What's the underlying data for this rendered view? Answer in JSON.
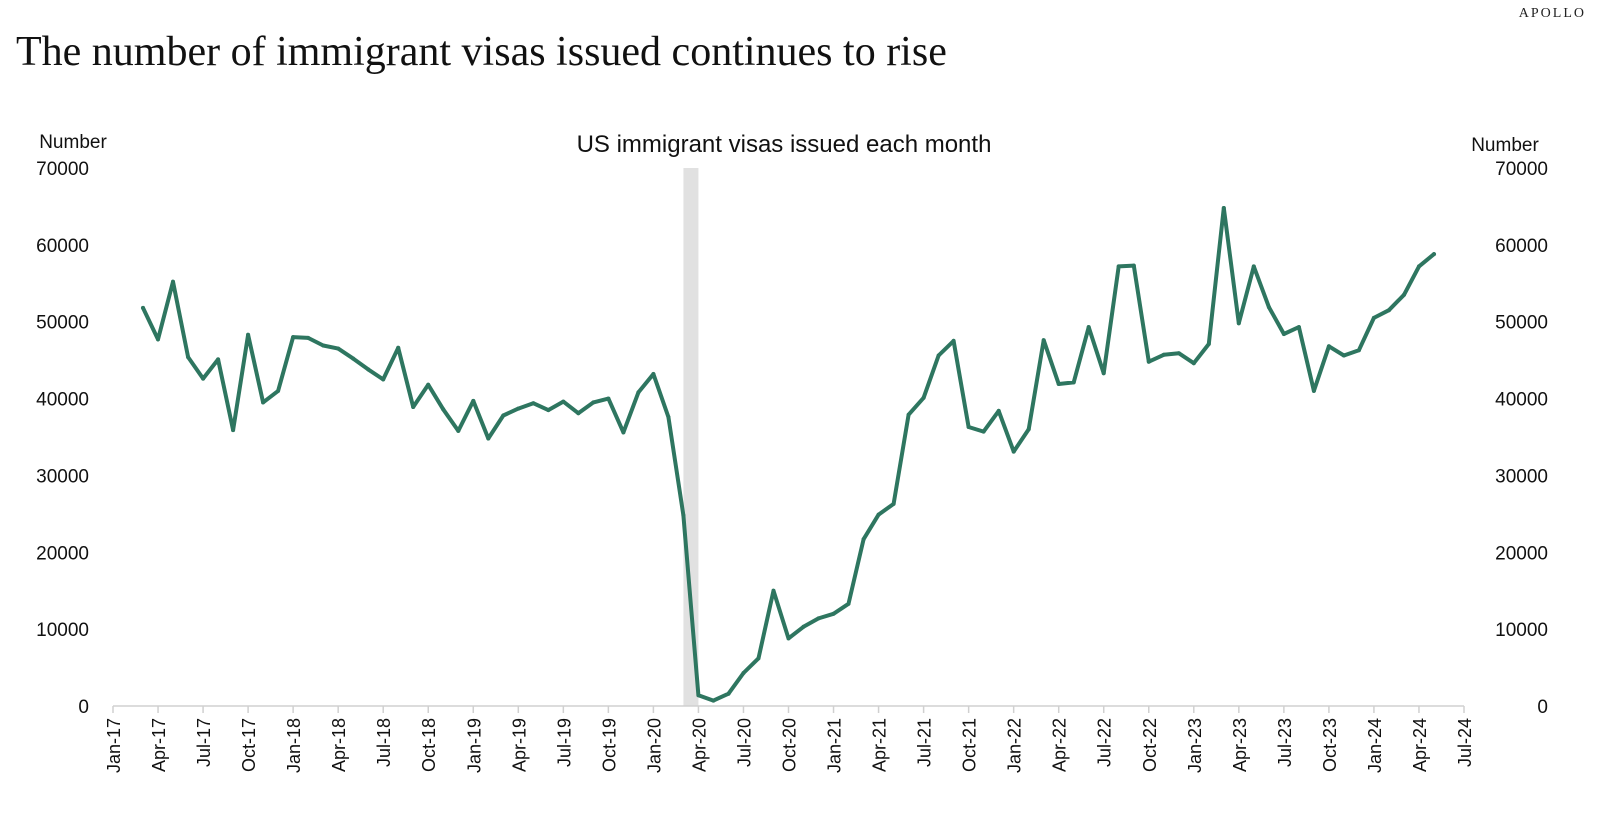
{
  "header": {
    "brand": "APOLLO",
    "headline": "The number of immigrant visas issued continues to rise"
  },
  "chart_data": {
    "type": "line",
    "title": "US immigrant visas issued each month",
    "left_axis_label": "Number",
    "right_axis_label": "Number",
    "ylim": [
      0,
      70000
    ],
    "y_ticks": [
      0,
      10000,
      20000,
      30000,
      40000,
      50000,
      60000,
      70000
    ],
    "x_range": [
      "2017-01",
      "2024-07"
    ],
    "x_ticks": [
      "Jan-17",
      "Apr-17",
      "Jul-17",
      "Oct-17",
      "Jan-18",
      "Apr-18",
      "Jul-18",
      "Oct-18",
      "Jan-19",
      "Apr-19",
      "Jul-19",
      "Oct-19",
      "Jan-20",
      "Apr-20",
      "Jul-20",
      "Oct-20",
      "Jan-21",
      "Apr-21",
      "Jul-21",
      "Oct-21",
      "Jan-22",
      "Apr-22",
      "Jul-22",
      "Oct-22",
      "Jan-23",
      "Apr-23",
      "Jul-23",
      "Oct-23",
      "Jan-24",
      "Apr-24",
      "Jul-24"
    ],
    "shaded_period": [
      "2020-03",
      "2020-04"
    ],
    "grid": false,
    "colors": {
      "line": "#2e7660",
      "shade": "#e1e1e1",
      "axis": "#d0d0d0"
    },
    "series": [
      {
        "x": [
          "2017-03",
          "2017-04",
          "2017-05",
          "2017-06",
          "2017-07",
          "2017-08",
          "2017-09",
          "2017-10",
          "2017-11",
          "2017-12",
          "2018-01",
          "2018-02",
          "2018-03",
          "2018-04",
          "2018-05",
          "2018-06",
          "2018-07",
          "2018-08",
          "2018-09",
          "2018-10",
          "2018-11",
          "2018-12",
          "2019-01",
          "2019-02",
          "2019-03",
          "2019-04",
          "2019-05",
          "2019-06",
          "2019-07",
          "2019-08",
          "2019-09",
          "2019-10",
          "2019-11",
          "2019-12",
          "2020-01",
          "2020-02",
          "2020-03",
          "2020-04",
          "2020-05",
          "2020-06",
          "2020-07",
          "2020-08",
          "2020-09",
          "2020-10",
          "2020-11",
          "2020-12",
          "2021-01",
          "2021-02",
          "2021-03",
          "2021-04",
          "2021-05",
          "2021-06",
          "2021-07",
          "2021-08",
          "2021-09",
          "2021-10",
          "2021-11",
          "2021-12",
          "2022-01",
          "2022-02",
          "2022-03",
          "2022-04",
          "2022-05",
          "2022-06",
          "2022-07",
          "2022-08",
          "2022-09",
          "2022-10",
          "2022-11",
          "2022-12",
          "2023-01",
          "2023-02",
          "2023-03",
          "2023-04",
          "2023-05",
          "2023-06",
          "2023-07",
          "2023-08",
          "2023-09",
          "2023-10",
          "2023-11",
          "2023-12",
          "2024-01",
          "2024-02",
          "2024-03",
          "2024-04",
          "2024-05"
        ],
        "values": [
          51800,
          47700,
          55200,
          45400,
          42600,
          45100,
          35900,
          48300,
          39500,
          41000,
          48000,
          47900,
          46900,
          46500,
          45200,
          43800,
          42500,
          46600,
          38900,
          41800,
          38600,
          35800,
          39700,
          34800,
          37800,
          38700,
          39400,
          38500,
          39600,
          38100,
          39500,
          40000,
          35600,
          40800,
          43200,
          37600,
          24800,
          1400,
          700,
          1600,
          4300,
          6200,
          15000,
          8800,
          10300,
          11400,
          12000,
          13300,
          21700,
          24900,
          26300,
          37900,
          40100,
          45600,
          47500,
          36300,
          35700,
          38400,
          33100,
          36000,
          47600,
          41900,
          42100,
          49300,
          43300,
          57200,
          57300,
          44800,
          45700,
          45900,
          44600,
          47100,
          64800,
          49800,
          57200,
          51900,
          48400,
          49300,
          41000,
          46800,
          45600,
          46300,
          50500,
          51500,
          53500,
          57200,
          58800
        ]
      }
    ]
  }
}
